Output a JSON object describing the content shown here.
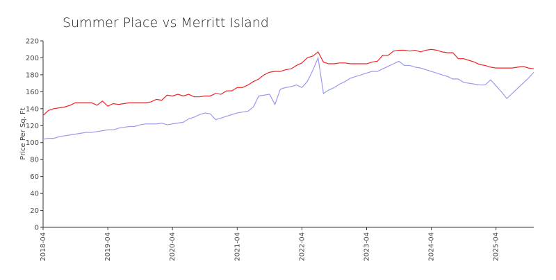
{
  "chart_data": {
    "type": "line",
    "title": "Summer Place vs Merritt Island",
    "y_label": "Price Per Sq. Ft",
    "x": [
      "2018-04",
      "2018-05",
      "2018-06",
      "2018-07",
      "2018-08",
      "2018-09",
      "2018-10",
      "2018-11",
      "2018-12",
      "2019-01",
      "2019-02",
      "2019-03",
      "2019-04",
      "2019-05",
      "2019-06",
      "2019-07",
      "2019-08",
      "2019-09",
      "2019-10",
      "2019-11",
      "2019-12",
      "2020-01",
      "2020-02",
      "2020-03",
      "2020-04",
      "2020-05",
      "2020-06",
      "2020-07",
      "2020-08",
      "2020-09",
      "2020-10",
      "2020-11",
      "2020-12",
      "2021-01",
      "2021-02",
      "2021-03",
      "2021-04",
      "2021-05",
      "2021-06",
      "2021-07",
      "2021-08",
      "2021-09",
      "2021-10",
      "2021-11",
      "2021-12",
      "2022-01",
      "2022-02",
      "2022-03",
      "2022-04",
      "2022-05",
      "2022-06",
      "2022-07",
      "2022-08",
      "2022-09",
      "2022-10",
      "2022-11",
      "2022-12",
      "2023-01",
      "2023-02",
      "2023-03",
      "2023-04",
      "2023-05",
      "2023-06",
      "2023-07",
      "2023-08",
      "2023-09",
      "2023-10",
      "2023-11",
      "2023-12",
      "2024-01",
      "2024-02",
      "2024-03",
      "2024-04",
      "2024-05",
      "2024-06",
      "2024-07",
      "2024-08",
      "2024-09",
      "2024-10",
      "2024-11",
      "2024-12",
      "2025-01",
      "2025-02",
      "2025-03",
      "2025-04",
      "2025-05",
      "2025-06",
      "2025-07",
      "2025-08",
      "2025-09",
      "2025-10",
      "2025-11"
    ],
    "series": [
      {
        "color": "#ee2222",
        "values": [
          132,
          138,
          140,
          141,
          142,
          144,
          147,
          147,
          147,
          147,
          144,
          149,
          143,
          146,
          145,
          146,
          147,
          147,
          147,
          147,
          148,
          151,
          150,
          156,
          155,
          157,
          155,
          157,
          154,
          154,
          155,
          155,
          158,
          157,
          161,
          161,
          165,
          165,
          168,
          172,
          175,
          180,
          183,
          184,
          184,
          186,
          187,
          191,
          194,
          200,
          202,
          207,
          195,
          193,
          193,
          194,
          194,
          193,
          193,
          193,
          193,
          195,
          196,
          203,
          203,
          208,
          209,
          209,
          208,
          209,
          207,
          209,
          210,
          209,
          207,
          206,
          206,
          199,
          199,
          197,
          195,
          192,
          191,
          189,
          188,
          188,
          188,
          188,
          189,
          190,
          188,
          187
        ]
      },
      {
        "color": "#9999ee",
        "values": [
          104,
          105,
          105,
          107,
          108,
          109,
          110,
          111,
          112,
          112,
          113,
          114,
          115,
          115,
          117,
          118,
          119,
          119,
          121,
          122,
          122,
          122,
          123,
          121,
          122,
          123,
          124,
          128,
          130,
          133,
          135,
          134,
          127,
          129,
          131,
          133,
          135,
          136,
          137,
          142,
          155,
          156,
          157,
          145,
          163,
          165,
          166,
          168,
          165,
          172,
          185,
          200,
          158,
          162,
          165,
          169,
          172,
          176,
          178,
          180,
          182,
          184,
          184,
          187,
          190,
          193,
          196,
          191,
          191,
          189,
          188,
          186,
          184,
          182,
          180,
          178,
          175,
          175,
          171,
          170,
          169,
          168,
          168,
          174,
          167,
          160,
          152,
          158,
          164,
          170,
          176,
          183
        ]
      }
    ],
    "xticks": [
      "2018-04",
      "2019-04",
      "2020-04",
      "2021-04",
      "2022-04",
      "2023-04",
      "2024-04",
      "2025-04"
    ],
    "ylim": [
      0,
      220
    ],
    "yticks": [
      0,
      20,
      40,
      60,
      80,
      100,
      120,
      140,
      160,
      180,
      200,
      220
    ]
  }
}
